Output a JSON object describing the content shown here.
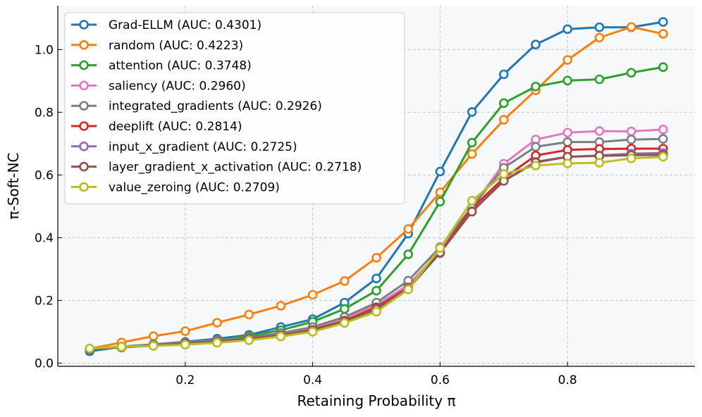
{
  "chart_data": {
    "type": "line",
    "title": "",
    "xlabel": "Retaining Probability π",
    "ylabel": "π-Soft-NC",
    "xlim": [
      0.0,
      1.0
    ],
    "ylim": [
      -0.01,
      1.14
    ],
    "xticks": [
      0.2,
      0.4,
      0.6,
      0.8
    ],
    "xtick_labels": [
      "0.2",
      "0.4",
      "0.6",
      "0.8"
    ],
    "yticks": [
      0.0,
      0.2,
      0.4,
      0.6,
      0.8,
      1.0
    ],
    "ytick_labels": [
      "0.0",
      "0.2",
      "0.4",
      "0.6",
      "0.8",
      "1.0"
    ],
    "grid": true,
    "legend_position": "top-left",
    "x": [
      0.05,
      0.1,
      0.15,
      0.2,
      0.25,
      0.3,
      0.35,
      0.4,
      0.45,
      0.5,
      0.55,
      0.6,
      0.65,
      0.7,
      0.75,
      0.8,
      0.85,
      0.9,
      0.95
    ],
    "series": [
      {
        "name": "Grad-ELLM (AUC: 0.4301)",
        "color": "#1f77b4",
        "values": [
          0.038,
          0.052,
          0.06,
          0.068,
          0.078,
          0.09,
          0.115,
          0.14,
          0.193,
          0.27,
          0.413,
          0.611,
          0.801,
          0.921,
          1.016,
          1.065,
          1.071,
          1.071,
          1.088
        ]
      },
      {
        "name": "random (AUC: 0.4223)",
        "color": "#ff7f0e",
        "values": [
          0.046,
          0.066,
          0.086,
          0.102,
          0.129,
          0.155,
          0.183,
          0.218,
          0.262,
          0.336,
          0.428,
          0.545,
          0.667,
          0.776,
          0.87,
          0.967,
          1.038,
          1.072,
          1.05
        ]
      },
      {
        "name": "attention (AUC: 0.3748)",
        "color": "#2ca02c",
        "values": [
          0.045,
          0.053,
          0.058,
          0.066,
          0.073,
          0.087,
          0.105,
          0.132,
          0.173,
          0.231,
          0.347,
          0.515,
          0.703,
          0.829,
          0.882,
          0.901,
          0.905,
          0.926,
          0.944
        ]
      },
      {
        "name": "saliency (AUC: 0.2960)",
        "color": "#e377c2",
        "values": [
          0.045,
          0.051,
          0.056,
          0.062,
          0.068,
          0.078,
          0.091,
          0.112,
          0.145,
          0.185,
          0.249,
          0.357,
          0.498,
          0.636,
          0.713,
          0.735,
          0.74,
          0.739,
          0.745
        ]
      },
      {
        "name": "integrated_gradients (AUC: 0.2926)",
        "color": "#7f7f7f",
        "values": [
          0.046,
          0.053,
          0.06,
          0.066,
          0.073,
          0.082,
          0.096,
          0.115,
          0.147,
          0.193,
          0.263,
          0.37,
          0.498,
          0.623,
          0.69,
          0.705,
          0.705,
          0.713,
          0.715
        ]
      },
      {
        "name": "deeplift (AUC: 0.2814)",
        "color": "#d62728",
        "values": [
          0.045,
          0.051,
          0.056,
          0.062,
          0.068,
          0.077,
          0.089,
          0.106,
          0.136,
          0.178,
          0.241,
          0.352,
          0.495,
          0.59,
          0.662,
          0.68,
          0.683,
          0.684,
          0.684
        ]
      },
      {
        "name": "input_x_gradient (AUC: 0.2725)",
        "color": "#9467bd",
        "values": [
          0.045,
          0.05,
          0.056,
          0.061,
          0.067,
          0.075,
          0.088,
          0.104,
          0.133,
          0.173,
          0.238,
          0.351,
          0.485,
          0.582,
          0.642,
          0.658,
          0.662,
          0.668,
          0.67
        ]
      },
      {
        "name": "layer_gradient_x_activation (AUC: 0.2718)",
        "color": "#8c564b",
        "values": [
          0.045,
          0.05,
          0.056,
          0.061,
          0.067,
          0.075,
          0.088,
          0.104,
          0.133,
          0.172,
          0.237,
          0.352,
          0.483,
          0.581,
          0.64,
          0.658,
          0.661,
          0.663,
          0.664
        ]
      },
      {
        "name": "value_zeroing (AUC: 0.2709)",
        "color": "#bcbd22",
        "values": [
          0.047,
          0.052,
          0.055,
          0.059,
          0.065,
          0.073,
          0.085,
          0.1,
          0.128,
          0.164,
          0.235,
          0.367,
          0.518,
          0.603,
          0.63,
          0.637,
          0.639,
          0.653,
          0.658
        ]
      }
    ]
  }
}
